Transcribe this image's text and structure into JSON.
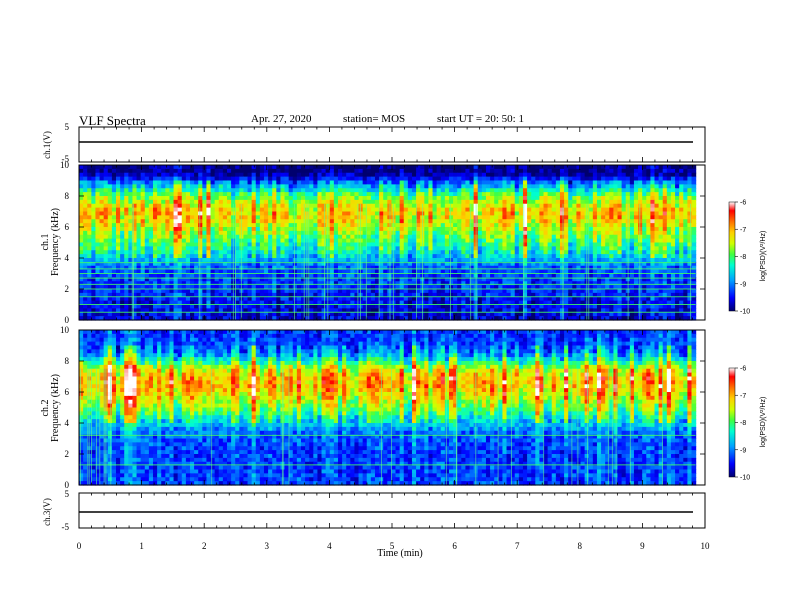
{
  "header": {
    "title": "VLF Spectra",
    "date": "Apr. 27, 2020",
    "station": "station= MOS",
    "start": "start UT = 20: 50: 1"
  },
  "colors": {
    "colormap": [
      "#00006e",
      "#0000ff",
      "#00a0ff",
      "#00ffd0",
      "#40ff40",
      "#d0ff00",
      "#ffd000",
      "#ff7000",
      "#ff0000",
      "#ffffff"
    ],
    "trace": "#000000"
  },
  "chart_data": [
    {
      "type": "line",
      "panel": "ch1-voltage",
      "ylabel": "ch.1(V)",
      "ylim": [
        -5,
        5
      ],
      "yticks": [
        "5",
        "-5"
      ],
      "xlim": [
        0,
        10
      ],
      "series": [
        {
          "x": [
            0,
            9.85
          ],
          "y": [
            0,
            0
          ]
        }
      ]
    },
    {
      "type": "heatmap",
      "panel": "ch1-spectrogram",
      "ylabel": "ch.1\nFrequency (kHz)",
      "xlim": [
        0,
        10
      ],
      "ylim": [
        0,
        10
      ],
      "yticks": [
        "0",
        "2",
        "4",
        "6",
        "8",
        "10"
      ],
      "data_extent_min": 9.85,
      "colorbar": {
        "label": "log(PSD)(V²/Hz)",
        "range": [
          -10,
          -6
        ],
        "ticks": [
          "-6",
          "-7",
          "-8",
          "-9",
          "-10"
        ]
      },
      "levels_by_frequency_khz": {
        "freq": [
          0,
          1,
          2,
          3,
          3.5,
          4,
          4.5,
          5,
          6,
          6.5,
          7,
          7.5,
          8,
          8.5,
          9,
          9.5,
          10
        ],
        "log_psd": [
          -9.7,
          -9.6,
          -9.4,
          -9.3,
          -9.1,
          -8.7,
          -8.4,
          -8.1,
          -7.6,
          -7.3,
          -7.2,
          -7.5,
          -7.9,
          -8.6,
          -9.3,
          -10,
          -10
        ]
      },
      "horizontal_lines_khz": [
        0.5,
        1.0,
        1.5,
        2.0,
        2.3,
        2.7,
        3.0,
        3.3,
        3.7
      ]
    },
    {
      "type": "heatmap",
      "panel": "ch2-spectrogram",
      "ylabel": "ch.2\nFrequency (kHz)",
      "xlim": [
        0,
        10
      ],
      "ylim": [
        0,
        10
      ],
      "yticks": [
        "0",
        "2",
        "4",
        "6",
        "8",
        "10"
      ],
      "data_extent_min": 9.85,
      "colorbar": {
        "label": "log(PSD)(V²/Hz)",
        "range": [
          -10,
          -6
        ],
        "ticks": [
          "-6",
          "-7",
          "-8",
          "-9",
          "-10"
        ]
      },
      "levels_by_frequency_khz": {
        "freq": [
          0,
          1,
          2,
          3,
          3.5,
          4,
          4.5,
          5,
          6,
          6.5,
          7,
          7.5,
          8,
          8.5,
          9,
          9.5,
          10
        ],
        "log_psd": [
          -9.3,
          -9.3,
          -9.3,
          -9.2,
          -9.0,
          -8.6,
          -8.2,
          -7.8,
          -7.2,
          -7.0,
          -7.1,
          -7.5,
          -8.3,
          -9.0,
          -9.2,
          -9.3,
          -9.3
        ]
      },
      "horizontal_lines_khz": [
        1.3,
        3.2
      ]
    },
    {
      "type": "line",
      "panel": "ch3-voltage",
      "ylabel": "ch.3(V)",
      "ylim": [
        -5,
        5
      ],
      "yticks": [
        "5",
        "-5"
      ],
      "xlim": [
        0,
        10
      ],
      "xlabel": "Time (min)",
      "xticks": [
        "0",
        "1",
        "2",
        "3",
        "4",
        "5",
        "6",
        "7",
        "8",
        "9",
        "10"
      ],
      "series": [
        {
          "x": [
            0,
            9.85
          ],
          "y": [
            0,
            0
          ]
        }
      ]
    }
  ]
}
